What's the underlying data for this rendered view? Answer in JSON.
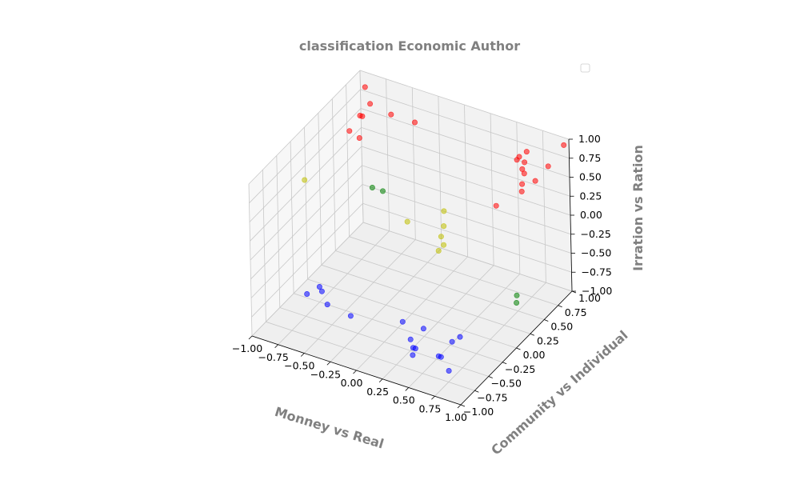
{
  "chart_data": {
    "type": "scatter",
    "title": "classification Economic Author",
    "xlabel": "Monney vs Real",
    "ylabel": "Community vs Individual",
    "zlabel": "Irration vs Ration",
    "xlim": [
      -1,
      1
    ],
    "ylim": [
      -1,
      1
    ],
    "zlim": [
      -1,
      1
    ],
    "x_ticks": [
      "−1.00",
      "−0.75",
      "−0.50",
      "−0.25",
      "0.00",
      "0.25",
      "0.50",
      "0.75",
      "1.00"
    ],
    "y_ticks": [
      "−1.00",
      "−0.75",
      "−0.50",
      "−0.25",
      "0.00",
      "0.25",
      "0.50",
      "0.75",
      "1.00"
    ],
    "z_ticks": [
      "−1.00",
      "−0.75",
      "−0.50",
      "−0.25",
      "0.00",
      "0.25",
      "0.50",
      "0.75",
      "1.00"
    ],
    "grid": true,
    "legend": "top-right (empty)",
    "colors": {
      "red": "#ff0000",
      "blue": "#0000ff",
      "green": "#008000",
      "yellow": "#bfbf00"
    },
    "series": [
      {
        "color": "red",
        "points": [
          [
            -0.9,
            0.9,
            0.9
          ],
          [
            -0.8,
            0.8,
            0.8
          ],
          [
            -0.9,
            0.8,
            0.6
          ],
          [
            -0.85,
            0.75,
            0.65
          ],
          [
            -0.6,
            0.8,
            0.75
          ],
          [
            -0.4,
            0.85,
            0.7
          ],
          [
            -0.8,
            0.6,
            0.5
          ],
          [
            -0.95,
            0.7,
            0.45
          ],
          [
            0.6,
            0.85,
            0.7
          ],
          [
            0.7,
            0.8,
            0.85
          ],
          [
            0.55,
            0.9,
            0.6
          ],
          [
            0.6,
            0.9,
            0.5
          ],
          [
            0.65,
            0.85,
            0.65
          ],
          [
            0.7,
            0.75,
            0.6
          ],
          [
            0.75,
            0.85,
            0.45
          ],
          [
            0.65,
            0.8,
            0.4
          ],
          [
            0.7,
            0.7,
            0.4
          ],
          [
            0.85,
            0.9,
            0.65
          ],
          [
            0.95,
            1.0,
            0.9
          ],
          [
            0.45,
            0.7,
            0.1
          ]
        ]
      },
      {
        "color": "blue",
        "points": [
          [
            -0.9,
            -0.2,
            -1.0
          ],
          [
            -0.75,
            -0.25,
            -0.8
          ],
          [
            -0.7,
            -0.3,
            -0.8
          ],
          [
            -0.65,
            -0.3,
            -0.95
          ],
          [
            -0.4,
            -0.35,
            -0.95
          ],
          [
            0.1,
            -0.35,
            -0.8
          ],
          [
            0.3,
            -0.35,
            -0.8
          ],
          [
            0.2,
            -0.4,
            -0.95
          ],
          [
            0.3,
            -0.5,
            -0.95
          ],
          [
            0.3,
            -0.55,
            -1.0
          ],
          [
            0.6,
            -0.4,
            -0.8
          ],
          [
            0.65,
            -0.35,
            -0.75
          ],
          [
            0.55,
            -0.55,
            -0.9
          ],
          [
            0.6,
            -0.6,
            -0.85
          ],
          [
            0.7,
            -0.65,
            -0.95
          ],
          [
            0.25,
            -0.45,
            -1.0
          ]
        ]
      },
      {
        "color": "green",
        "points": [
          [
            -0.85,
            0.9,
            -0.4
          ],
          [
            -0.75,
            0.9,
            -0.4
          ],
          [
            0.85,
            0.3,
            -0.6
          ],
          [
            0.9,
            0.2,
            -0.6
          ]
        ]
      },
      {
        "color": "yellow",
        "points": [
          [
            -0.9,
            -0.2,
            0.5
          ],
          [
            -0.3,
            0.5,
            -0.3
          ],
          [
            0.0,
            0.6,
            -0.1
          ],
          [
            0.05,
            0.5,
            -0.2
          ],
          [
            0.05,
            0.45,
            -0.3
          ],
          [
            0.1,
            0.4,
            -0.35
          ],
          [
            0.05,
            0.4,
            -0.45
          ]
        ]
      }
    ]
  }
}
